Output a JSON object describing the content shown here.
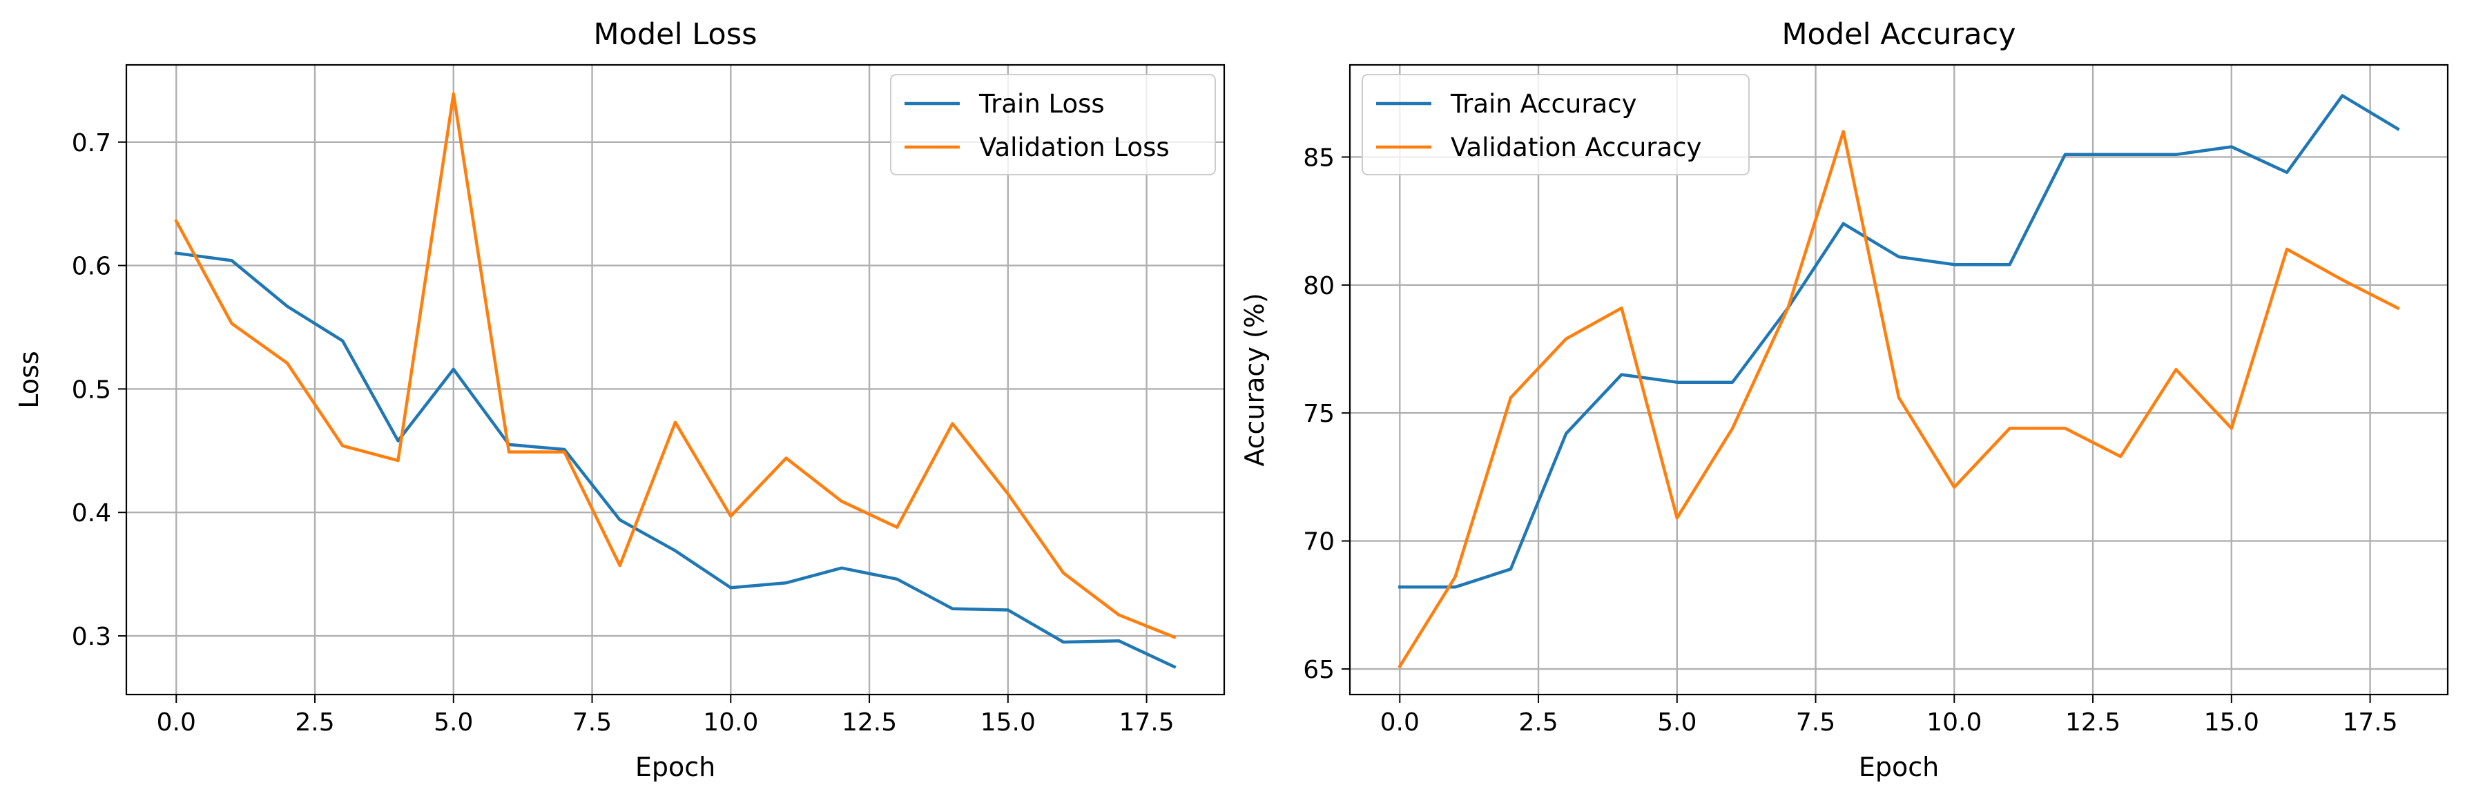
{
  "chart_data": [
    {
      "type": "line",
      "title": "Model Loss",
      "xlabel": "Epoch",
      "ylabel": "Loss",
      "xlim": [
        -0.9,
        18.9
      ],
      "ylim": [
        0.2525,
        0.7625
      ],
      "xticks": [
        0,
        2.5,
        5,
        7.5,
        10,
        12.5,
        15,
        17.5
      ],
      "xtick_labels": [
        "0.0",
        "2.5",
        "5.0",
        "7.5",
        "10.0",
        "12.5",
        "15.0",
        "17.5"
      ],
      "yticks": [
        0.3,
        0.4,
        0.5,
        0.6,
        0.7
      ],
      "ytick_labels": [
        "0.3",
        "0.4",
        "0.5",
        "0.6",
        "0.7"
      ],
      "grid": true,
      "legend_position": "top-right",
      "x": [
        0,
        1,
        2,
        3,
        4,
        5,
        6,
        7,
        8,
        9,
        10,
        11,
        12,
        13,
        14,
        15,
        16,
        17,
        18
      ],
      "series": [
        {
          "name": "Train Loss",
          "color": "#1f77b4",
          "values": [
            0.61,
            0.604,
            0.567,
            0.539,
            0.458,
            0.516,
            0.455,
            0.451,
            0.394,
            0.369,
            0.339,
            0.343,
            0.355,
            0.346,
            0.322,
            0.321,
            0.295,
            0.296,
            0.275
          ]
        },
        {
          "name": "Validation Loss",
          "color": "#ff7f0e",
          "values": [
            0.636,
            0.553,
            0.521,
            0.454,
            0.442,
            0.739,
            0.449,
            0.449,
            0.357,
            0.473,
            0.397,
            0.444,
            0.409,
            0.388,
            0.472,
            0.415,
            0.351,
            0.317,
            0.299
          ]
        }
      ]
    },
    {
      "type": "line",
      "title": "Model Accuracy",
      "xlabel": "Epoch",
      "ylabel": "Accuracy (%)",
      "xlim": [
        -0.9,
        18.9
      ],
      "ylim": [
        64.0,
        88.6
      ],
      "xticks": [
        0,
        2.5,
        5,
        7.5,
        10,
        12.5,
        15,
        17.5
      ],
      "xtick_labels": [
        "0.0",
        "2.5",
        "5.0",
        "7.5",
        "10.0",
        "12.5",
        "15.0",
        "17.5"
      ],
      "yticks": [
        65,
        70,
        75,
        80,
        85
      ],
      "ytick_labels": [
        "65",
        "70",
        "75",
        "80",
        "85"
      ],
      "grid": true,
      "legend_position": "top-left",
      "x": [
        0,
        1,
        2,
        3,
        4,
        5,
        6,
        7,
        8,
        9,
        10,
        11,
        12,
        13,
        14,
        15,
        16,
        17,
        18
      ],
      "series": [
        {
          "name": "Train Accuracy",
          "color": "#1f77b4",
          "values": [
            68.2,
            68.2,
            68.9,
            74.2,
            76.5,
            76.2,
            76.2,
            79.1,
            82.4,
            81.1,
            80.8,
            80.8,
            85.1,
            85.1,
            85.1,
            85.4,
            84.4,
            87.4,
            86.1
          ]
        },
        {
          "name": "Validation Accuracy",
          "color": "#ff7f0e",
          "values": [
            65.1,
            68.6,
            75.6,
            77.9,
            79.1,
            70.9,
            74.4,
            79.1,
            86.0,
            75.6,
            72.1,
            74.4,
            74.4,
            73.3,
            76.7,
            74.4,
            81.4,
            80.2,
            79.1
          ]
        }
      ]
    }
  ]
}
